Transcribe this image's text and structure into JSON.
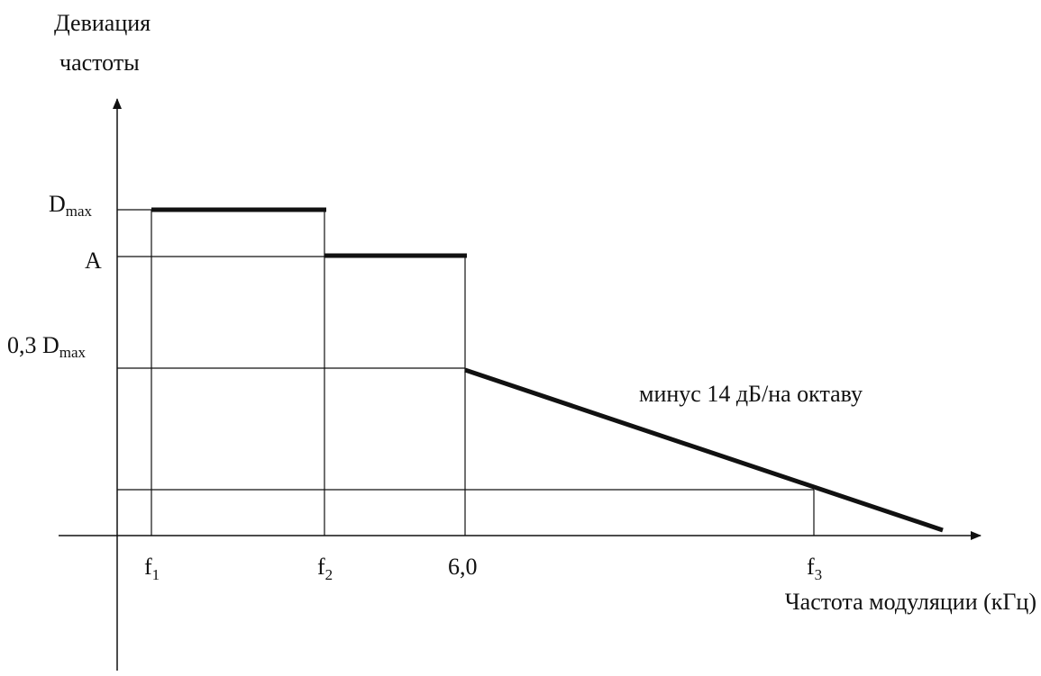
{
  "axes": {
    "y_title_line1": "Девиация",
    "y_title_line2": "частоты",
    "x_title": "Частота модуляции (кГц)"
  },
  "y_levels": {
    "dmax_main": "D",
    "dmax_sub": "max",
    "a": "A",
    "d03_main": "0,3 D",
    "d03_sub": "max"
  },
  "x_ticks": {
    "f1_main": "f",
    "f1_sub": "1",
    "f2_main": "f",
    "f2_sub": "2",
    "six": "6,0",
    "f3_main": "f",
    "f3_sub": "3"
  },
  "annotation": "минус 14 дБ/на октаву"
}
